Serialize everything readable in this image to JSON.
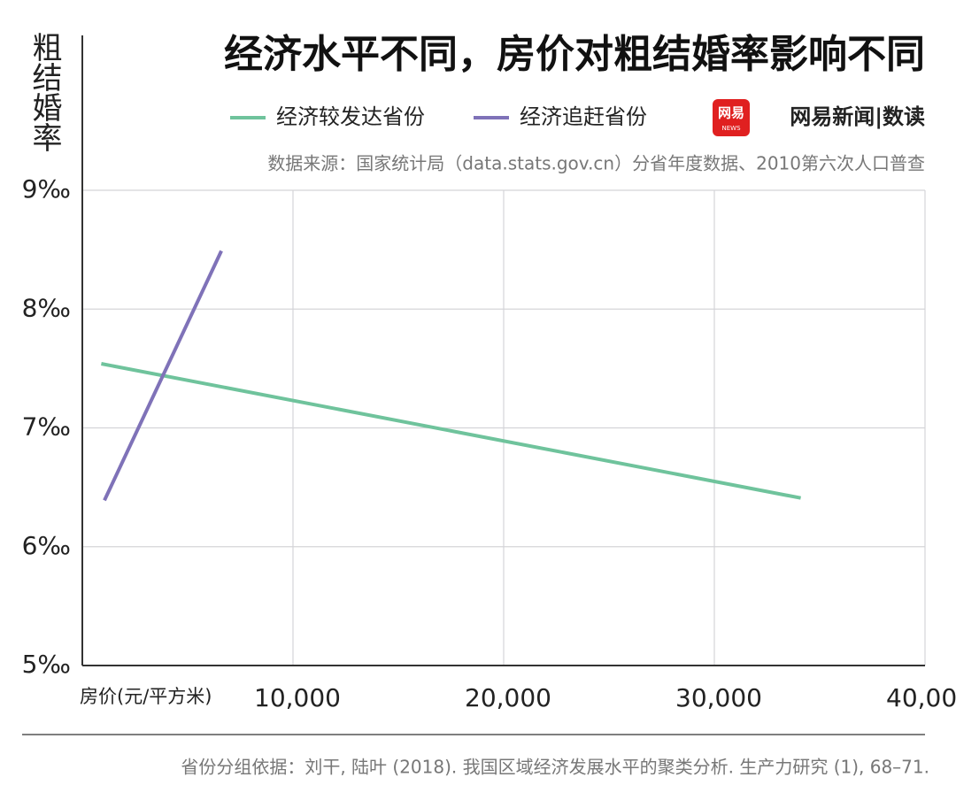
{
  "chart_data": {
    "type": "line",
    "title": "经济水平不同，房价对粗结婚率影响不同",
    "y_label": "粗结婚率",
    "x_label": "房价(元/平方米)",
    "source": "数据来源：国家统计局（data.stats.gov.cn）分省年度数据、2010第六次人口普查",
    "note": "省份分组依据：刘干, 陆叶 (2018). 我国区域经济发展水平的聚类分析. 生产力研究 (1), 68–71.",
    "logo_text": "网易",
    "logo_sub": "NEWS",
    "brand": "网易新闻|数读",
    "series": [
      {
        "name": "经济较发达省份",
        "color": "#6fc39c",
        "x": [
          900,
          34100
        ],
        "values": [
          7.54,
          6.41
        ]
      },
      {
        "name": "经济追赶省份",
        "color": "#7f72b8",
        "x": [
          1050,
          6600
        ],
        "values": [
          6.39,
          8.49
        ]
      }
    ],
    "xlim": [
      0,
      40000
    ],
    "ylim": [
      5,
      9
    ],
    "xticks": [
      {
        "value": 10000,
        "label": "10,000"
      },
      {
        "value": 20000,
        "label": "20,000"
      },
      {
        "value": 30000,
        "label": "30,000"
      },
      {
        "value": 40000,
        "label": "40,000"
      }
    ],
    "yticks": [
      {
        "value": 5,
        "label": "5‰"
      },
      {
        "value": 6,
        "label": "6‰"
      },
      {
        "value": 7,
        "label": "7‰"
      },
      {
        "value": 8,
        "label": "8‰"
      },
      {
        "value": 9,
        "label": "9‰"
      }
    ],
    "grid": true
  }
}
